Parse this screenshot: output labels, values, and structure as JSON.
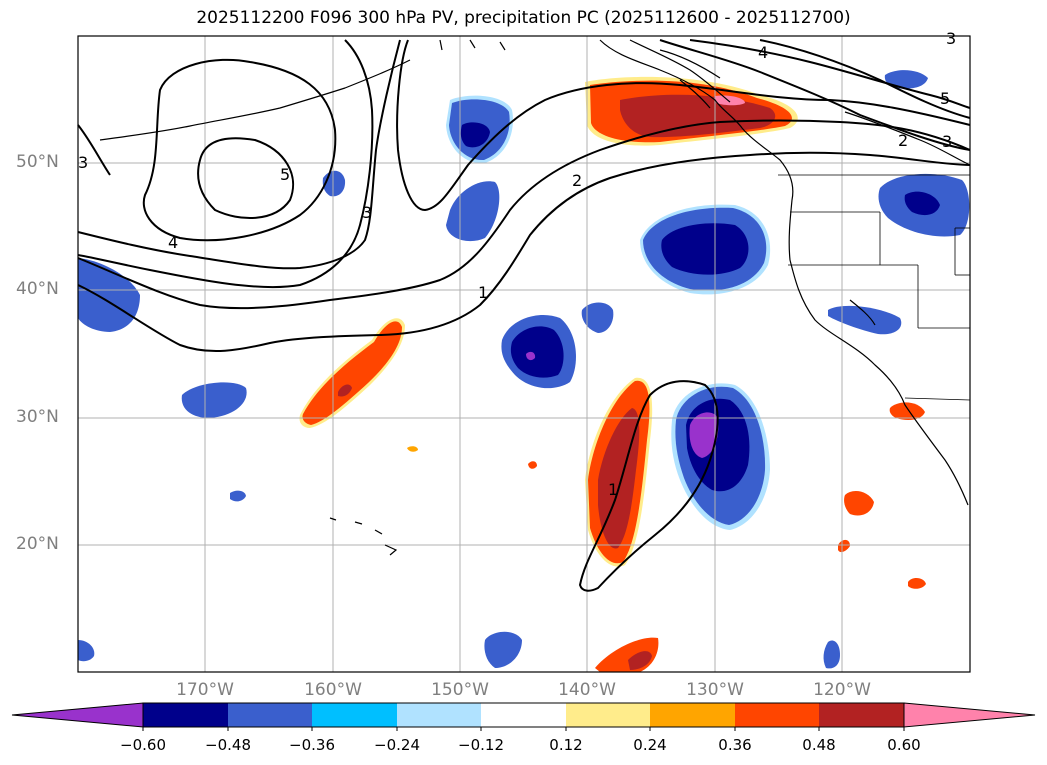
{
  "title": "2025112200 F096 300 hPa PV, precipitation PC (2025112600 - 2025112700)",
  "map": {
    "lat_ticks": [
      "50°N",
      "40°N",
      "30°N",
      "20°N"
    ],
    "lon_ticks": [
      "170°W",
      "160°W",
      "150°W",
      "140°W",
      "130°W",
      "120°W"
    ],
    "pv_contour_labels": [
      "5",
      "4",
      "3",
      "5",
      "3",
      "2",
      "3",
      "2",
      "1",
      "1",
      "4",
      "3"
    ]
  },
  "colorbar": {
    "ticks": [
      "−0.60",
      "−0.48",
      "−0.36",
      "−0.24",
      "−0.12",
      "0.12",
      "0.24",
      "0.36",
      "0.48",
      "0.60"
    ],
    "colors": [
      "#9932cc",
      "#00008b",
      "#3a5fcd",
      "#00bfff",
      "#b0e2ff",
      "#ffffff",
      "#ffec8b",
      "#ffa500",
      "#ff4500",
      "#b22222",
      "#ff82ab"
    ]
  }
}
